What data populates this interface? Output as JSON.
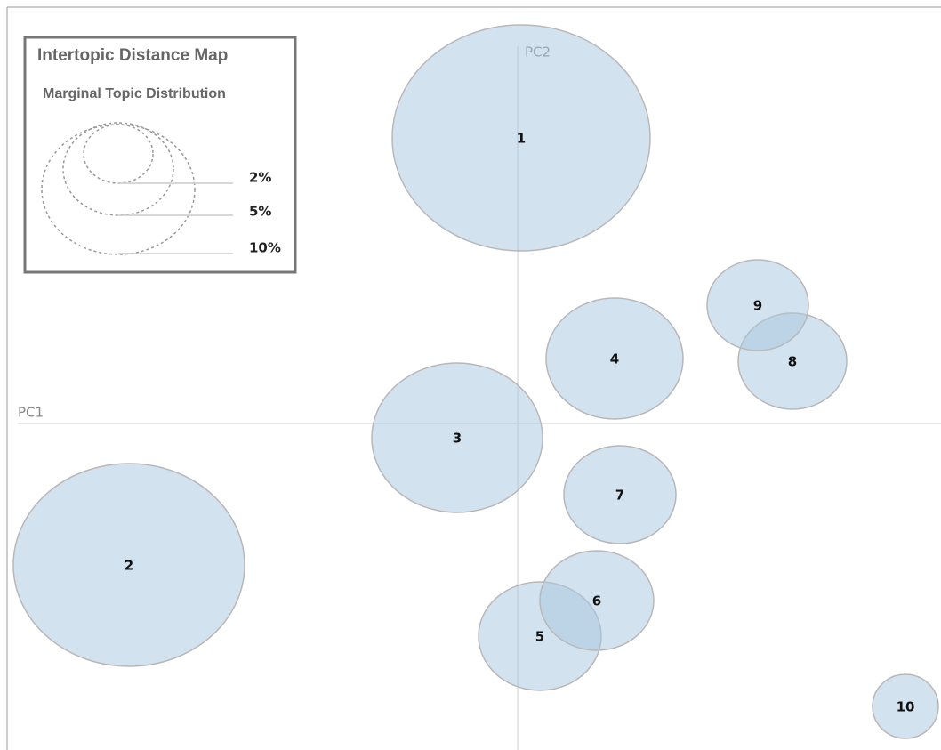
{
  "title": "Intertopic Distance Map",
  "subtitle": "Marginal Topic Distribution",
  "axes": {
    "x": "PC1",
    "y": "PC2"
  },
  "legend": {
    "labels": [
      "2%",
      "5%",
      "10%"
    ]
  },
  "topics": [
    "1",
    "2",
    "3",
    "4",
    "5",
    "6",
    "7",
    "8",
    "9",
    "10"
  ]
}
